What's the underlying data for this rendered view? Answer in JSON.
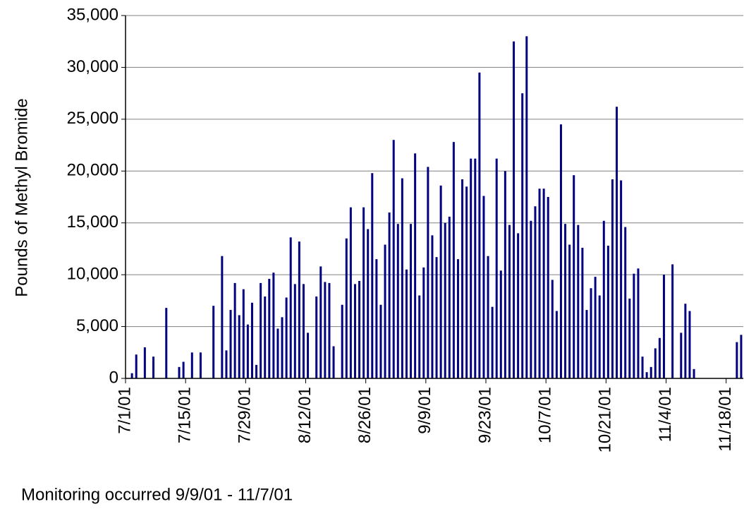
{
  "chart_data": {
    "type": "bar",
    "y_label": "Pounds of Methyl Bromide",
    "note": "Monitoring occurred 9/9/01 - 11/7/01",
    "color": "#000080",
    "grid": true,
    "ylim": [
      0,
      35000
    ],
    "yticks": [
      0,
      {
        "value": 5000,
        "label": "5,000"
      },
      {
        "value": 10000,
        "label": "10,000"
      },
      {
        "value": 15000,
        "label": "15,000"
      },
      {
        "value": 20000,
        "label": "20,000"
      },
      {
        "value": 25000,
        "label": "25,000"
      },
      {
        "value": 30000,
        "label": "30,000"
      },
      {
        "value": 35000,
        "label": "35,000"
      }
    ],
    "categories": [
      "7/1/01",
      null,
      null,
      null,
      null,
      null,
      null,
      null,
      null,
      null,
      null,
      null,
      null,
      null,
      "7/15/01",
      null,
      null,
      null,
      null,
      null,
      null,
      null,
      null,
      null,
      null,
      null,
      null,
      null,
      "7/29/01",
      null,
      null,
      null,
      null,
      null,
      null,
      null,
      null,
      null,
      null,
      null,
      null,
      null,
      "8/12/01",
      null,
      null,
      null,
      null,
      null,
      null,
      null,
      null,
      null,
      null,
      null,
      null,
      null,
      "8/26/01",
      null,
      null,
      null,
      null,
      null,
      null,
      null,
      null,
      null,
      null,
      null,
      null,
      null,
      "9/9/01",
      null,
      null,
      null,
      null,
      null,
      null,
      null,
      null,
      null,
      null,
      null,
      null,
      null,
      "9/23/01",
      null,
      null,
      null,
      null,
      null,
      null,
      null,
      null,
      null,
      null,
      null,
      null,
      null,
      "10/7/01",
      null,
      null,
      null,
      null,
      null,
      null,
      null,
      null,
      null,
      null,
      null,
      null,
      null,
      "10/21/01",
      null,
      null,
      null,
      null,
      null,
      null,
      null,
      null,
      null,
      null,
      null,
      null,
      null,
      "11/4/01",
      null,
      null,
      null,
      null,
      null,
      null,
      null,
      null,
      null,
      null,
      null,
      null,
      null,
      "11/18/01",
      null,
      null,
      null
    ],
    "values": [
      0,
      500,
      2300,
      0,
      3000,
      0,
      2100,
      0,
      0,
      6800,
      0,
      0,
      1100,
      1600,
      0,
      2500,
      0,
      2500,
      0,
      0,
      7000,
      0,
      11800,
      2700,
      6600,
      9200,
      6100,
      8600,
      5200,
      7300,
      1300,
      9200,
      7900,
      9600,
      10200,
      4800,
      5900,
      7800,
      13600,
      9100,
      13200,
      9100,
      4400,
      0,
      7900,
      10800,
      9300,
      9200,
      3100,
      0,
      7100,
      13500,
      16500,
      9100,
      9400,
      16500,
      14400,
      19800,
      11500,
      7100,
      12900,
      16000,
      23000,
      14900,
      19300,
      10500,
      14900,
      21700,
      8000,
      10700,
      20400,
      13800,
      11700,
      18600,
      15000,
      15600,
      22800,
      11500,
      19200,
      18500,
      21200,
      21200,
      29500,
      17600,
      11800,
      6900,
      21200,
      10400,
      20000,
      14800,
      32500,
      14000,
      27500,
      33000,
      15200,
      16600,
      18300,
      18300,
      17500,
      9500,
      6500,
      24500,
      14900,
      12900,
      19600,
      14800,
      12600,
      6600,
      8700,
      9800,
      8000,
      15200,
      12800,
      19200,
      26200,
      19100,
      14600,
      7700,
      10100,
      10600,
      2100,
      600,
      1100,
      2900,
      3900,
      10000,
      0,
      11000,
      0,
      4400,
      7200,
      6500,
      900,
      0,
      0,
      0,
      0,
      0,
      0,
      0,
      0,
      0,
      3500,
      4200
    ]
  }
}
